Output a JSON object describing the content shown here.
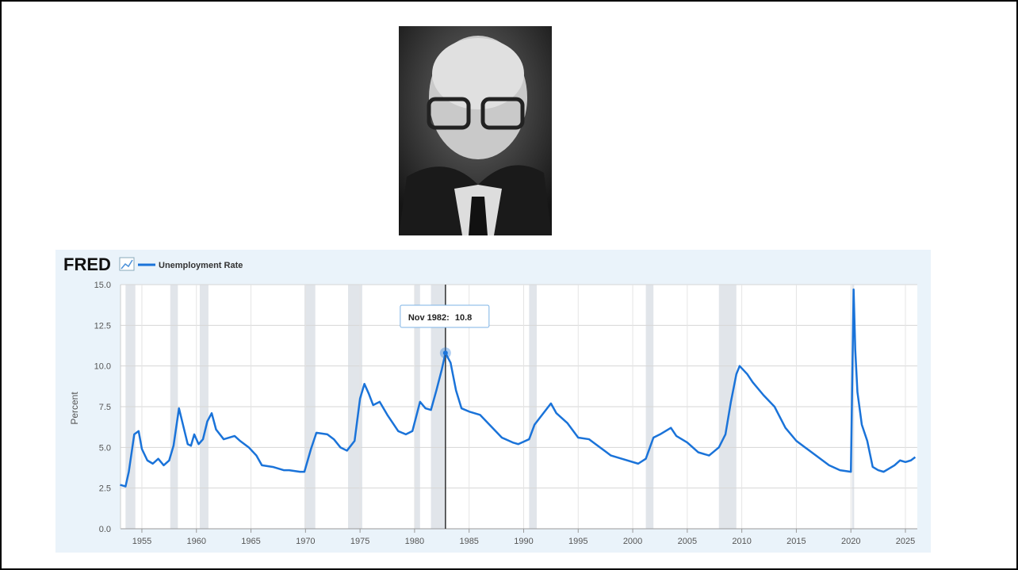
{
  "chart_data": {
    "type": "line",
    "logo": "FRED",
    "ylabel": "Percent",
    "series": [
      {
        "name": "Unemployment Rate",
        "color": "#1a73d9",
        "values": [
          2.7,
          2.6,
          3.5,
          5.8,
          6.0,
          4.9,
          4.2,
          4.0,
          4.3,
          3.9,
          4.2,
          5.1,
          7.4,
          6.3,
          5.2,
          5.1,
          5.8,
          5.2,
          5.5,
          6.6,
          7.1,
          6.1,
          5.5,
          5.7,
          5.4,
          5.0,
          4.5,
          3.9,
          3.8,
          3.6,
          3.6,
          3.5,
          3.5,
          4.9,
          5.9,
          5.8,
          5.5,
          5.0,
          4.8,
          5.4,
          8.0,
          8.9,
          8.3,
          7.6,
          7.8,
          7.0,
          6.0,
          5.8,
          6.0,
          7.8,
          7.4,
          7.3,
          8.5,
          9.8,
          10.8,
          10.2,
          8.5,
          7.4,
          7.2,
          7.0,
          6.3,
          5.6,
          5.3,
          5.2,
          5.5,
          6.4,
          7.7,
          7.1,
          6.5,
          5.6,
          5.5,
          5.0,
          4.5,
          4.3,
          4.0,
          4.3,
          5.6,
          5.8,
          6.2,
          5.7,
          5.3,
          4.7,
          4.5,
          5.0,
          5.8,
          7.8,
          9.5,
          10.0,
          9.5,
          9.0,
          8.2,
          7.5,
          6.2,
          5.4,
          4.9,
          4.4,
          3.9,
          3.6,
          3.5,
          14.7,
          11.0,
          8.4,
          6.4,
          5.4,
          3.8,
          3.6,
          3.5,
          3.7,
          3.9,
          4.2,
          4.1,
          4.2,
          4.4
        ]
      }
    ],
    "x": [
      1953.0,
      1953.5,
      1953.8,
      1954.3,
      1954.7,
      1955.0,
      1955.5,
      1956.0,
      1956.5,
      1957.0,
      1957.5,
      1957.9,
      1958.4,
      1958.8,
      1959.2,
      1959.5,
      1959.8,
      1960.2,
      1960.6,
      1961.0,
      1961.4,
      1961.8,
      1962.5,
      1963.5,
      1964.0,
      1964.8,
      1965.5,
      1966.0,
      1967.0,
      1968.0,
      1968.5,
      1969.5,
      1969.9,
      1970.5,
      1971.0,
      1972.0,
      1972.6,
      1973.2,
      1973.8,
      1974.5,
      1975.0,
      1975.4,
      1975.8,
      1976.2,
      1976.8,
      1977.5,
      1978.5,
      1979.2,
      1979.8,
      1980.5,
      1981.0,
      1981.5,
      1982.0,
      1982.5,
      1982.83,
      1983.3,
      1983.8,
      1984.3,
      1985.0,
      1986.0,
      1987.0,
      1988.0,
      1989.0,
      1989.5,
      1990.5,
      1991.0,
      1992.5,
      1993.0,
      1994.0,
      1995.0,
      1996.0,
      1997.0,
      1998.0,
      1999.0,
      2000.5,
      2001.2,
      2001.9,
      2002.5,
      2003.5,
      2004.0,
      2005.0,
      2006.0,
      2007.0,
      2007.9,
      2008.5,
      2009.0,
      2009.5,
      2009.8,
      2010.5,
      2011.0,
      2012.0,
      2013.0,
      2014.0,
      2015.0,
      2016.0,
      2017.0,
      2018.0,
      2019.0,
      2020.0,
      2020.25,
      2020.4,
      2020.6,
      2021.0,
      2021.5,
      2022.0,
      2022.5,
      2023.0,
      2023.5,
      2024.0,
      2024.5,
      2025.0,
      2025.5,
      2025.9
    ],
    "xlim": [
      1953.04,
      2026.09
    ],
    "xticks": [
      1955,
      1960,
      1965,
      1970,
      1975,
      1980,
      1985,
      1990,
      1995,
      2000,
      2005,
      2010,
      2015,
      2020,
      2025
    ],
    "ylim": [
      0,
      15
    ],
    "yticks": [
      {
        "value": 0,
        "label": "0.0"
      },
      2.5,
      {
        "value": 5,
        "label": "5.0"
      },
      7.5,
      {
        "value": 10,
        "label": "10.0"
      },
      12.5,
      {
        "value": 15,
        "label": "15.0"
      }
    ],
    "grid": true,
    "recession_color": "#e1e5ea",
    "recessions": [
      [
        1953.5,
        1954.4
      ],
      [
        1957.6,
        1958.3
      ],
      [
        1960.3,
        1961.1
      ],
      [
        1969.9,
        1970.9
      ],
      [
        1973.9,
        1975.2
      ],
      [
        1980.0,
        1980.5
      ],
      [
        1981.5,
        1982.9
      ],
      [
        1990.5,
        1991.2
      ],
      [
        2001.2,
        2001.9
      ],
      [
        2007.9,
        2009.5
      ],
      [
        2020.1,
        2020.3
      ]
    ],
    "tooltip": {
      "label": "Nov 1982:",
      "x": 1982.83,
      "value": 10.8
    }
  }
}
